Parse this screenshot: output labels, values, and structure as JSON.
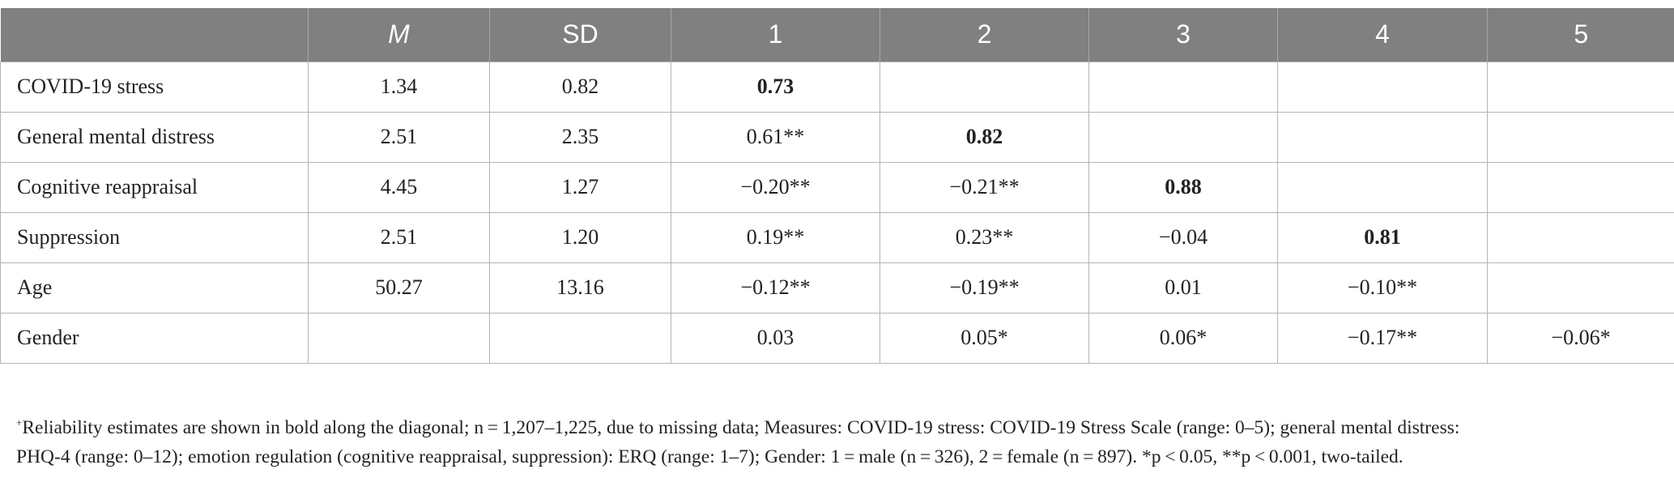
{
  "table": {
    "headers": [
      "",
      "M",
      "SD",
      "1",
      "2",
      "3",
      "4",
      "5"
    ],
    "rows": [
      {
        "cells": [
          "COVID-19 stress",
          "1.34",
          "0.82",
          "0.73",
          "",
          "",
          "",
          ""
        ],
        "bold_col": 3
      },
      {
        "cells": [
          "General mental distress",
          "2.51",
          "2.35",
          "0.61**",
          "0.82",
          "",
          "",
          ""
        ],
        "bold_col": 4
      },
      {
        "cells": [
          "Cognitive reappraisal",
          "4.45",
          "1.27",
          "−0.20**",
          "−0.21**",
          "0.88",
          "",
          ""
        ],
        "bold_col": 5
      },
      {
        "cells": [
          "Suppression",
          "2.51",
          "1.20",
          "0.19**",
          "0.23**",
          "−0.04",
          "0.81",
          ""
        ],
        "bold_col": 6
      },
      {
        "cells": [
          "Age",
          "50.27",
          "13.16",
          "−0.12**",
          "−0.19**",
          "0.01",
          "−0.10**",
          ""
        ],
        "bold_col": -1
      },
      {
        "cells": [
          "Gender",
          "",
          "",
          "0.03",
          "0.05*",
          "0.06*",
          "−0.17**",
          "−0.06*"
        ],
        "bold_col": -1
      }
    ]
  },
  "footnote": {
    "marker": "+",
    "line1": "Reliability estimates are shown in bold along the diagonal; n = 1,207–1,225, due to missing data; Measures: COVID-19 stress: COVID-19 Stress Scale (range: 0–5); general mental distress:",
    "line2": "PHQ-4 (range: 0–12); emotion regulation (cognitive reappraisal, suppression): ERQ (range: 1–7); Gender: 1 = male (n = 326), 2 = female (n = 897). *p < 0.05, **p < 0.001, two-tailed."
  }
}
